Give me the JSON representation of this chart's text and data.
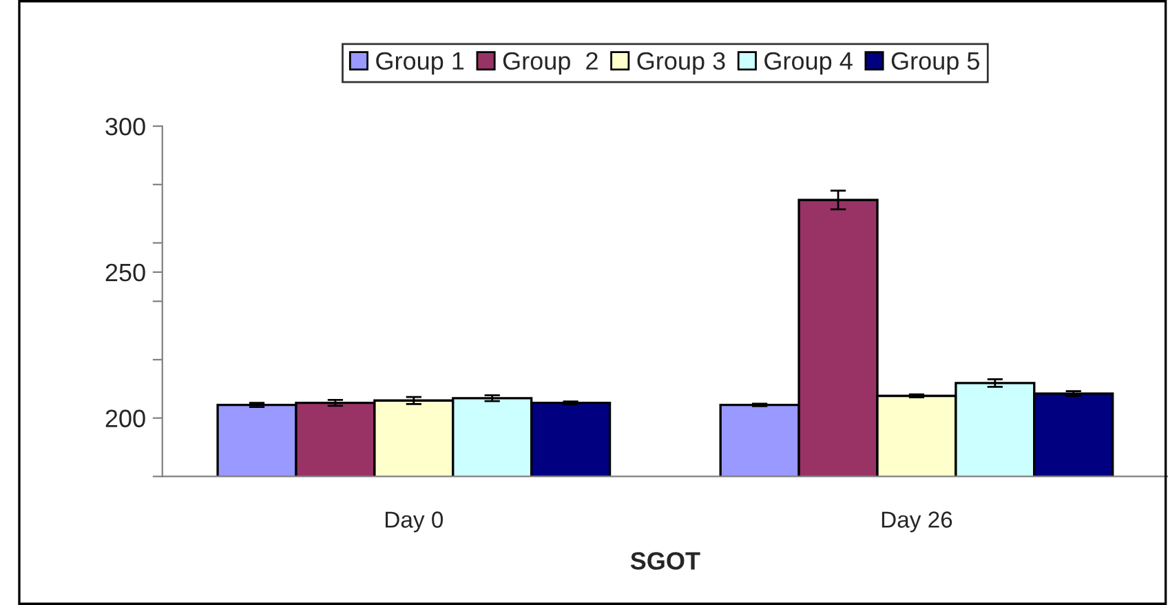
{
  "chart_data": {
    "type": "bar",
    "xlabel": "SGOT",
    "categories": [
      "Day 0",
      "Day 26"
    ],
    "series": [
      {
        "name": "Group 1",
        "color": "#9999ff",
        "values": [
          204.5,
          204.5
        ],
        "errors": [
          0.7,
          0.4
        ]
      },
      {
        "name": "Group  2",
        "color": "#993366",
        "values": [
          205.2,
          274.7
        ],
        "errors": [
          1,
          3.2
        ]
      },
      {
        "name": "Group 3",
        "color": "#ffffcc",
        "values": [
          206.0,
          207.6
        ],
        "errors": [
          1.2,
          0.5
        ]
      },
      {
        "name": "Group 4",
        "color": "#ccffff",
        "values": [
          206.8,
          212.0
        ],
        "errors": [
          1,
          1.3
        ]
      },
      {
        "name": "Group 5",
        "color": "#000080",
        "values": [
          205.2,
          208.4
        ],
        "errors": [
          0.5,
          0.8
        ]
      }
    ],
    "ylim": [
      180,
      300
    ],
    "yticks": [
      {
        "value": 180,
        "label": null
      },
      {
        "value": 200,
        "label": "200"
      },
      {
        "value": 220,
        "label": null
      },
      {
        "value": 240,
        "label": null
      },
      {
        "value": 250,
        "label": "250"
      },
      {
        "value": 260,
        "label": null
      },
      {
        "value": 280,
        "label": null
      },
      {
        "value": 300,
        "label": "300"
      }
    ],
    "grid": false,
    "legend": "top"
  }
}
